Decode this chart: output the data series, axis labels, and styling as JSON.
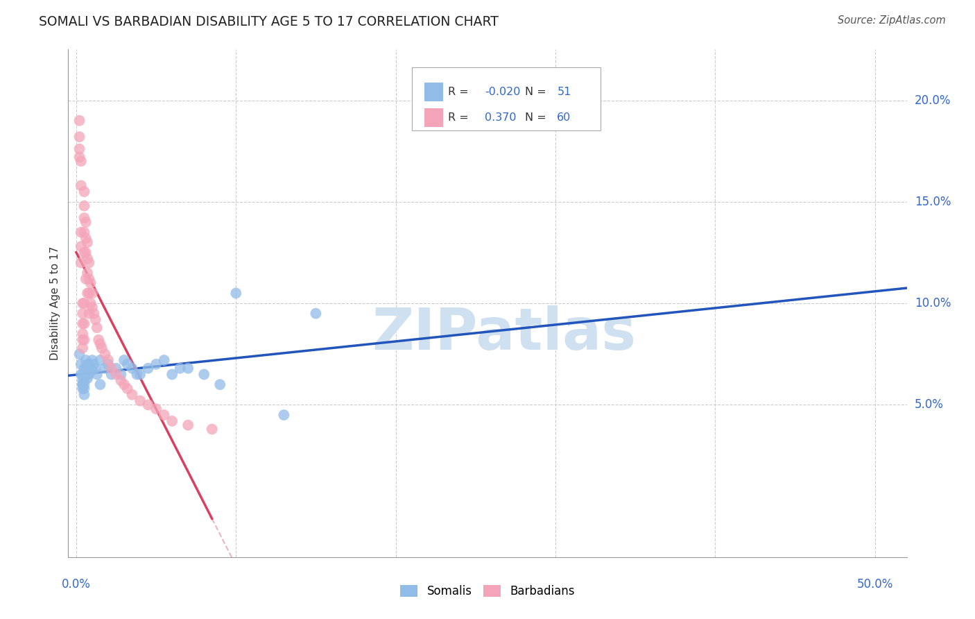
{
  "title": "SOMALI VS BARBADIAN DISABILITY AGE 5 TO 17 CORRELATION CHART",
  "source": "Source: ZipAtlas.com",
  "ylabel": "Disability Age 5 to 17",
  "ytick_labels": [
    "20.0%",
    "15.0%",
    "10.0%",
    "5.0%"
  ],
  "ytick_vals": [
    0.2,
    0.15,
    0.1,
    0.05
  ],
  "xtick_labels": [
    "0.0%",
    "50.0%"
  ],
  "xtick_vals": [
    0.0,
    0.5
  ],
  "xlim": [
    -0.005,
    0.52
  ],
  "ylim": [
    -0.025,
    0.225
  ],
  "r_somali": -0.02,
  "n_somali": 51,
  "r_barbadian": 0.37,
  "n_barbadian": 60,
  "somali_color": "#92bce8",
  "barbadian_color": "#f4a4b8",
  "somali_line_color": "#2255bb",
  "barbadian_solid_color": "#d94060",
  "barbadian_dash_color": "#e8a0b8",
  "grid_color": "#cccccc",
  "title_color": "#222222",
  "axis_label_color": "#3366cc",
  "somali_x": [
    0.002,
    0.003,
    0.003,
    0.004,
    0.004,
    0.004,
    0.004,
    0.004,
    0.005,
    0.005,
    0.005,
    0.005,
    0.005,
    0.005,
    0.006,
    0.006,
    0.006,
    0.007,
    0.007,
    0.007,
    0.008,
    0.008,
    0.009,
    0.01,
    0.01,
    0.011,
    0.012,
    0.013,
    0.015,
    0.015,
    0.018,
    0.02,
    0.022,
    0.025,
    0.028,
    0.03,
    0.032,
    0.035,
    0.038,
    0.04,
    0.045,
    0.05,
    0.055,
    0.06,
    0.065,
    0.07,
    0.08,
    0.09,
    0.1,
    0.13,
    0.15
  ],
  "somali_y": [
    0.075,
    0.07,
    0.065,
    0.065,
    0.062,
    0.06,
    0.06,
    0.058,
    0.068,
    0.065,
    0.062,
    0.06,
    0.058,
    0.055,
    0.072,
    0.068,
    0.065,
    0.07,
    0.065,
    0.063,
    0.07,
    0.065,
    0.068,
    0.072,
    0.067,
    0.07,
    0.068,
    0.065,
    0.072,
    0.06,
    0.068,
    0.07,
    0.065,
    0.068,
    0.065,
    0.072,
    0.07,
    0.068,
    0.065,
    0.065,
    0.068,
    0.07,
    0.072,
    0.065,
    0.068,
    0.068,
    0.065,
    0.06,
    0.105,
    0.045,
    0.095
  ],
  "barbadian_x": [
    0.002,
    0.002,
    0.002,
    0.002,
    0.003,
    0.003,
    0.003,
    0.003,
    0.003,
    0.004,
    0.004,
    0.004,
    0.004,
    0.004,
    0.004,
    0.005,
    0.005,
    0.005,
    0.005,
    0.005,
    0.005,
    0.005,
    0.005,
    0.006,
    0.006,
    0.006,
    0.006,
    0.007,
    0.007,
    0.007,
    0.007,
    0.008,
    0.008,
    0.008,
    0.008,
    0.009,
    0.009,
    0.01,
    0.01,
    0.011,
    0.012,
    0.013,
    0.014,
    0.015,
    0.016,
    0.018,
    0.02,
    0.022,
    0.025,
    0.028,
    0.03,
    0.032,
    0.035,
    0.04,
    0.045,
    0.05,
    0.055,
    0.06,
    0.07,
    0.085
  ],
  "barbadian_y": [
    0.19,
    0.182,
    0.176,
    0.172,
    0.17,
    0.158,
    0.135,
    0.128,
    0.12,
    0.1,
    0.095,
    0.09,
    0.085,
    0.082,
    0.078,
    0.155,
    0.148,
    0.142,
    0.135,
    0.125,
    0.1,
    0.09,
    0.082,
    0.14,
    0.132,
    0.125,
    0.112,
    0.13,
    0.122,
    0.115,
    0.105,
    0.12,
    0.112,
    0.105,
    0.095,
    0.11,
    0.1,
    0.105,
    0.098,
    0.095,
    0.092,
    0.088,
    0.082,
    0.08,
    0.078,
    0.075,
    0.072,
    0.068,
    0.065,
    0.062,
    0.06,
    0.058,
    0.055,
    0.052,
    0.05,
    0.048,
    0.045,
    0.042,
    0.04,
    0.038
  ],
  "watermark_text": "ZIPatlas",
  "watermark_color": "#cfe0f0",
  "background_color": "#ffffff"
}
